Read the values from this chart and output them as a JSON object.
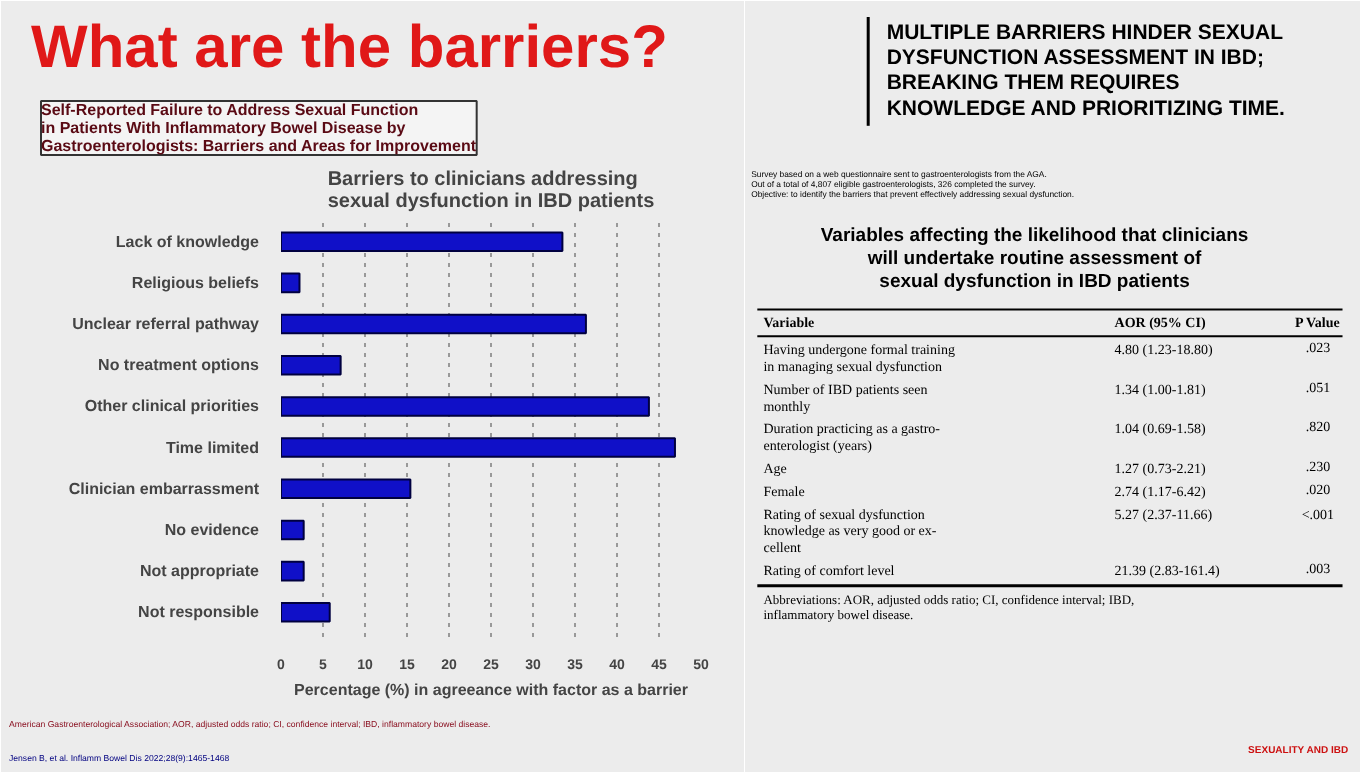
{
  "chart_data": [
    {
      "type": "bar",
      "orientation": "horizontal",
      "title": "What are the barriers?",
      "subtitle": "Self-Reported Failure to Address Sexual Function\nin Patients With Inflammatory Bowel Disease by\nGastroenterologists: Barriers and Areas for Improvement",
      "legend_title": "Barriers to clinicians addressing\nsexual dysfunction in IBD patients",
      "xlabel": "Percentage (%) in agreeance with factor as a barrier",
      "categories": [
        "Lack of knowledge",
        "Religious beliefs",
        "Unclear referral pathway",
        "No treatment options",
        "Other clinical priorities",
        "Time limited",
        "Clinician embarrassment",
        "No evidence",
        "Not appropriate",
        "Not responsible"
      ],
      "values": [
        33.5,
        2.2,
        36.3,
        7.1,
        43.8,
        46.9,
        15.4,
        2.7,
        2.7,
        5.8
      ],
      "color": "#1010c8",
      "xlim": [
        0,
        50
      ],
      "xticks": [
        0,
        5,
        10,
        15,
        20,
        25,
        30,
        35,
        40,
        45,
        50
      ],
      "grid": "x",
      "annotations": [
        "American Gastroenterological Association; AOR, adjusted odds ratio; CI, confidence interval; IBD, inflammatory bowel disease.",
        "Jensen B, et al. Inflamm Bowel Dis 2022;28(9):1465-1468"
      ]
    },
    {
      "type": "other",
      "title": "Variables affecting the likelihood that clinicians\nwill undertake routine assessment of\nsexual dysfunction in IBD patients",
      "subtitle": "MULTIPLE BARRIERS HINDER SEXUAL\nDYSFUNCTION ASSESSMENT IN IBD;\nBREAKING THEM REQUIRES\nKNOWLEDGE AND PRIORITIZING TIME.",
      "annotations": [
        "Survey based on a web questionnaire sent to gastroenterologists from the AGA.\nOut of a total of 4,807 eligible gastroenterologists, 326 completed the survey.\nObjective: to identify the barriers that prevent effectively addressing sexual dysfunction.",
        "Abbreviations: AOR, adjusted odds ratio; CI, confidence interval; IBD,\ninflammatory bowel disease.",
        "SEXUALITY AND IBD",
        "Variable",
        "AOR (95% CI)",
        "P Value",
        "Having undergone formal training\nin managing sexual dysfunction",
        "4.80 (1.23-18.80)",
        ".023",
        "Number of IBD patients seen\nmonthly",
        "1.34 (1.00-1.81)",
        ".051",
        "Duration practicing as a gastro-\nenterologist (years)",
        "1.04 (0.69-1.58)",
        ".820",
        "Age",
        "1.27 (0.73-2.21)",
        ".230",
        "Female",
        "2.74 (1.17-6.42)",
        ".020",
        "Rating of sexual dysfunction\nknowledge as very good or ex-\ncellent",
        "5.27 (2.37-11.66)",
        "<.001",
        "Rating of comfort level",
        "21.39 (2.83-161.4)",
        ".003"
      ]
    }
  ]
}
